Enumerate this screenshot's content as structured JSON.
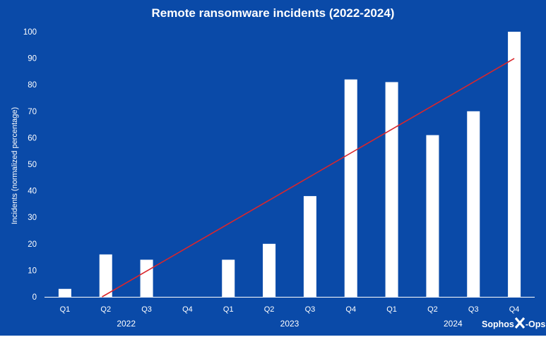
{
  "chart_data": {
    "type": "bar",
    "title": "Remote ransomware incidents (2022-2024)",
    "xlabel": "",
    "ylabel": "Incidents (normalized percentage)",
    "ylim": [
      0,
      100
    ],
    "yticks": [
      "0",
      "10",
      "20",
      "30",
      "40",
      "50",
      "60",
      "70",
      "80",
      "90",
      "100"
    ],
    "grid": false,
    "categories": [
      "Q1",
      "Q2",
      "Q3",
      "Q4",
      "Q1",
      "Q2",
      "Q3",
      "Q4",
      "Q1",
      "Q2",
      "Q3",
      "Q4"
    ],
    "groups": [
      {
        "label": "2022",
        "categories": [
          "Q1",
          "Q2",
          "Q3",
          "Q4"
        ]
      },
      {
        "label": "2023",
        "categories": [
          "Q1",
          "Q2",
          "Q3",
          "Q4"
        ]
      },
      {
        "label": "2024",
        "categories": [
          "Q1",
          "Q2",
          "Q3",
          "Q4"
        ]
      }
    ],
    "values": [
      3,
      16,
      14,
      0,
      14,
      20,
      38,
      82,
      81,
      61,
      70,
      100
    ],
    "trendline": {
      "type": "linear",
      "start": -8.1,
      "end": 89.9
    }
  },
  "colors": {
    "background": "#0a4aa8",
    "bar": "#ffffff",
    "text": "#ffffff",
    "trendline": "#d9262c",
    "axis": "#ffffff"
  },
  "brand": {
    "left": "Sophos",
    "mark": "X",
    "right": "-Ops"
  }
}
